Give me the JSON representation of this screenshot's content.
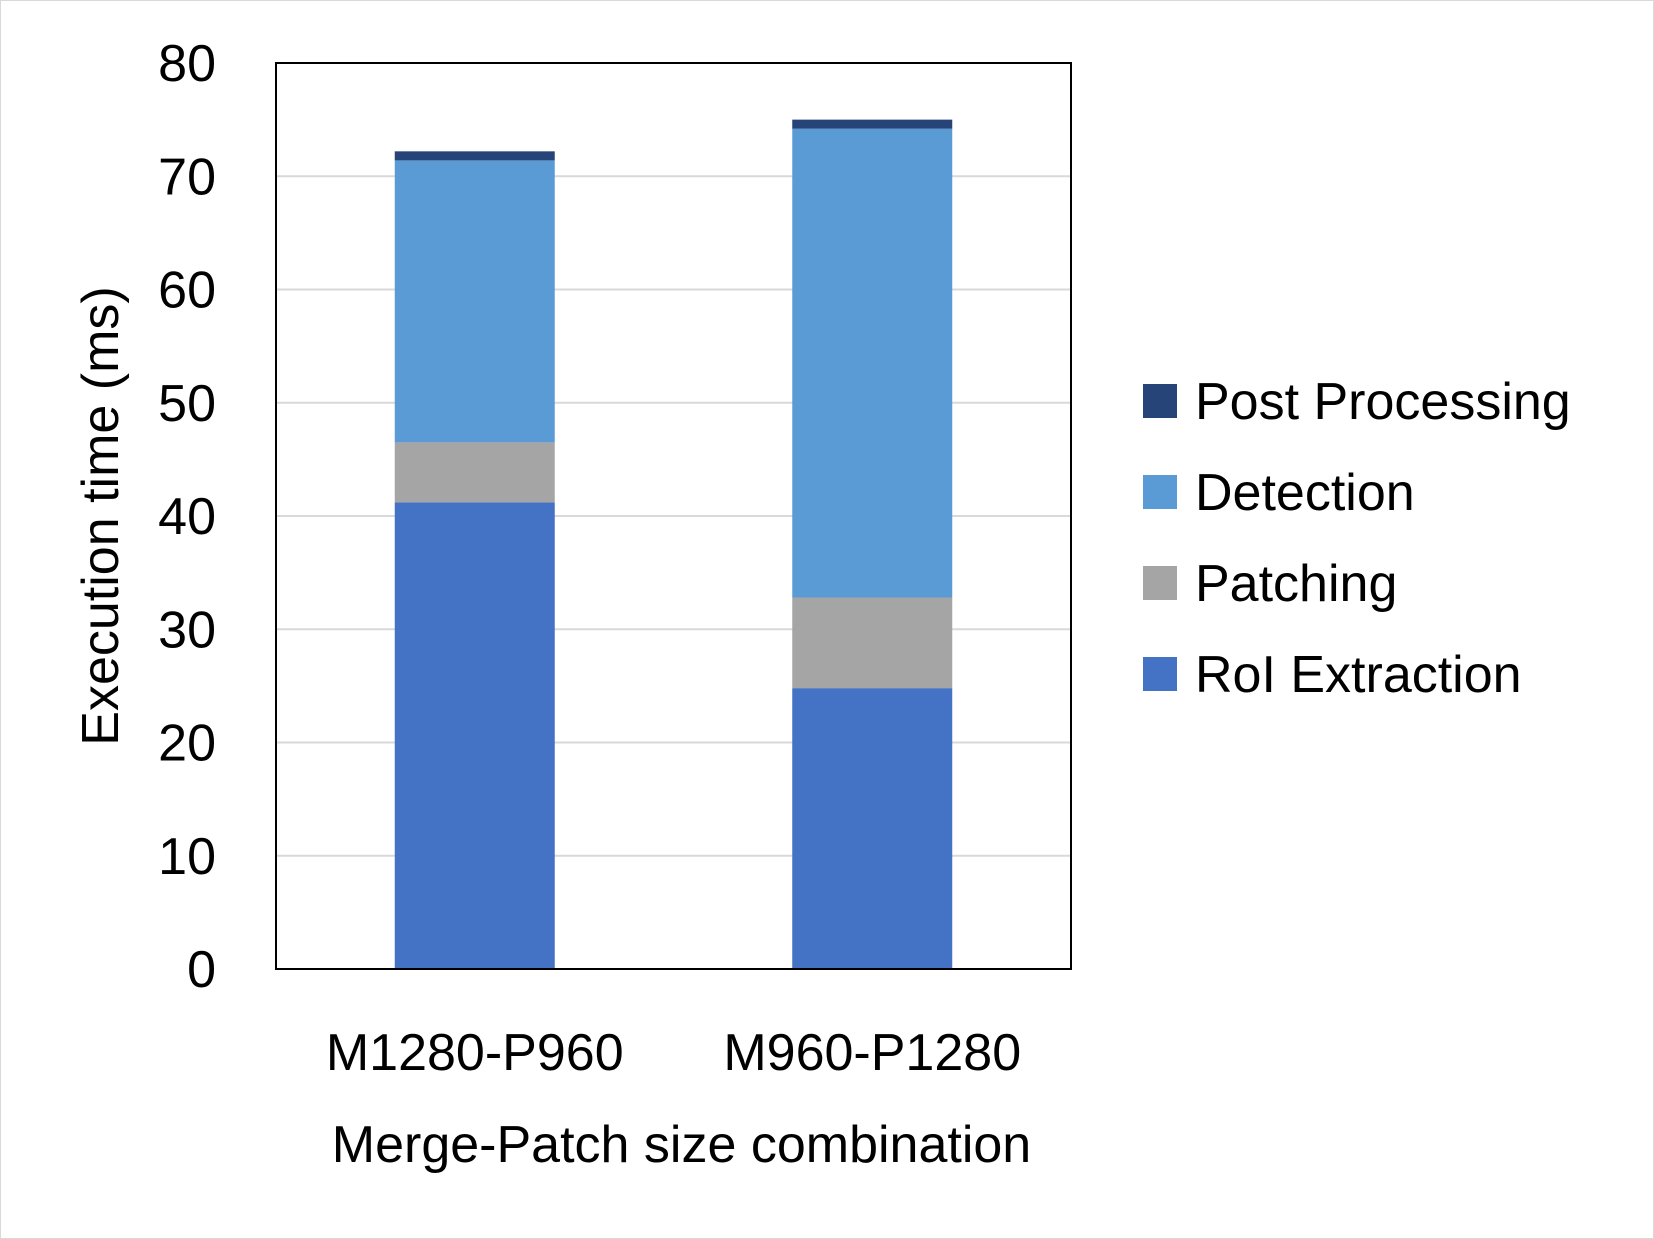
{
  "chart_data": {
    "type": "bar",
    "stacked": true,
    "categories": [
      "M1280-P960",
      "M960-P1280"
    ],
    "series": [
      {
        "name": "RoI Extraction",
        "values": [
          41.2,
          24.8
        ],
        "color": "#4472C4"
      },
      {
        "name": "Patching",
        "values": [
          5.3,
          8.0
        ],
        "color": "#A5A5A5"
      },
      {
        "name": "Detection",
        "values": [
          24.9,
          41.4
        ],
        "color": "#5B9BD5"
      },
      {
        "name": "Post Processing",
        "values": [
          0.8,
          0.8
        ],
        "color": "#264478"
      }
    ],
    "title": "",
    "xlabel": "Merge-Patch size combination",
    "ylabel": "Execution time (ms)",
    "ylim": [
      0,
      80
    ],
    "yticks": [
      0,
      10,
      20,
      30,
      40,
      50,
      60,
      70,
      80
    ],
    "grid": true,
    "legend_position": "right"
  }
}
